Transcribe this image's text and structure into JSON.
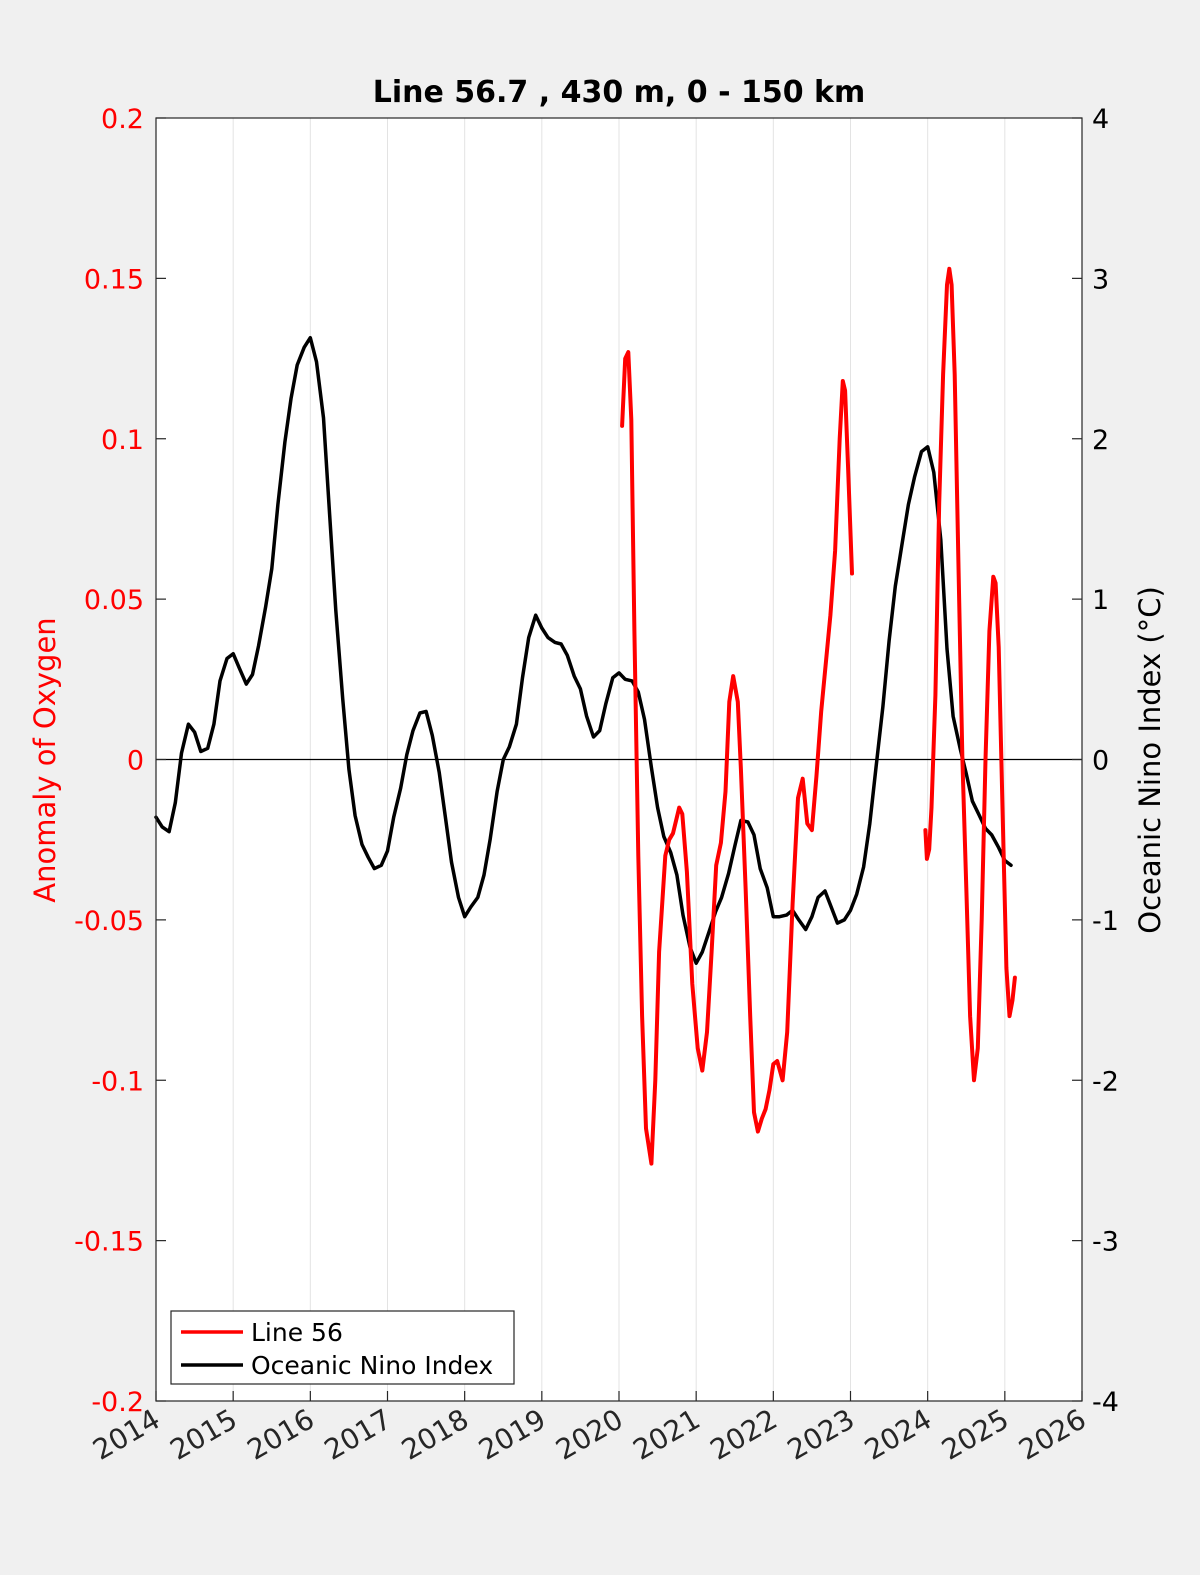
{
  "chart_data": {
    "type": "line",
    "title": "Line 56.7 , 430 m, 0 - 150 km",
    "xlabel": "",
    "ylabel_left": "Anomaly of Oxygen",
    "ylabel_right": "Oceanic Nino Index (°C)",
    "xlim": [
      2014,
      2026
    ],
    "ylim_left": [
      -0.2,
      0.2
    ],
    "ylim_right": [
      -4,
      4
    ],
    "x_ticks": [
      2014,
      2015,
      2016,
      2017,
      2018,
      2019,
      2020,
      2021,
      2022,
      2023,
      2024,
      2025,
      2026
    ],
    "x_tick_labels": [
      "2014",
      "2015",
      "2016",
      "2017",
      "2018",
      "2019",
      "2020",
      "2021",
      "2022",
      "2023",
      "2024",
      "2025",
      "2026"
    ],
    "y_left_ticks": [
      0.2,
      0.15,
      0.1,
      0.05,
      0,
      -0.05,
      -0.1,
      -0.15,
      -0.2
    ],
    "y_left_tick_labels": [
      "0.2",
      "0.15",
      "0.1",
      "0.05",
      "0",
      "-0.05",
      "-0.1",
      "-0.15",
      "-0.2"
    ],
    "y_right_ticks": [
      4,
      3,
      2,
      1,
      0,
      -1,
      -2,
      -3,
      -4
    ],
    "y_right_tick_labels": [
      "4",
      "3",
      "2",
      "1",
      "0",
      "-1",
      "-2",
      "-3",
      "-4"
    ],
    "grid": "vertical",
    "legend_position": "bottom-left",
    "colors": {
      "line56": "#ff0000",
      "oni": "#000000",
      "left_axis": "#ff0000",
      "right_axis": "#000000"
    },
    "series": [
      {
        "name": "Line 56",
        "axis": "left",
        "segments": [
          [
            [
              2020.04,
              0.104
            ],
            [
              2020.08,
              0.125
            ],
            [
              2020.12,
              0.127
            ],
            [
              2020.16,
              0.106
            ],
            [
              2020.2,
              0.04
            ],
            [
              2020.25,
              -0.03
            ],
            [
              2020.3,
              -0.08
            ],
            [
              2020.35,
              -0.115
            ],
            [
              2020.42,
              -0.126
            ],
            [
              2020.47,
              -0.1
            ],
            [
              2020.52,
              -0.06
            ],
            [
              2020.6,
              -0.03
            ],
            [
              2020.65,
              -0.025
            ],
            [
              2020.7,
              -0.023
            ],
            [
              2020.78,
              -0.015
            ],
            [
              2020.82,
              -0.017
            ],
            [
              2020.88,
              -0.035
            ],
            [
              2020.95,
              -0.07
            ],
            [
              2021.02,
              -0.09
            ],
            [
              2021.08,
              -0.097
            ],
            [
              2021.14,
              -0.085
            ],
            [
              2021.2,
              -0.06
            ],
            [
              2021.26,
              -0.033
            ],
            [
              2021.32,
              -0.026
            ],
            [
              2021.38,
              -0.01
            ],
            [
              2021.43,
              0.018
            ],
            [
              2021.48,
              0.026
            ],
            [
              2021.54,
              0.018
            ],
            [
              2021.58,
              -0.003
            ],
            [
              2021.64,
              -0.04
            ],
            [
              2021.7,
              -0.08
            ],
            [
              2021.75,
              -0.11
            ],
            [
              2021.8,
              -0.116
            ],
            [
              2021.85,
              -0.112
            ],
            [
              2021.9,
              -0.109
            ],
            [
              2021.95,
              -0.103
            ],
            [
              2022.0,
              -0.095
            ],
            [
              2022.05,
              -0.094
            ],
            [
              2022.12,
              -0.1
            ],
            [
              2022.18,
              -0.085
            ],
            [
              2022.25,
              -0.045
            ],
            [
              2022.32,
              -0.012
            ],
            [
              2022.38,
              -0.006
            ],
            [
              2022.44,
              -0.02
            ],
            [
              2022.5,
              -0.022
            ],
            [
              2022.56,
              -0.005
            ],
            [
              2022.62,
              0.015
            ],
            [
              2022.68,
              0.03
            ],
            [
              2022.74,
              0.045
            ],
            [
              2022.8,
              0.065
            ],
            [
              2022.86,
              0.1
            ],
            [
              2022.9,
              0.118
            ],
            [
              2022.93,
              0.115
            ],
            [
              2022.97,
              0.09
            ],
            [
              2023.02,
              0.058
            ]
          ],
          [
            [
              2023.97,
              -0.022
            ],
            [
              2023.99,
              -0.031
            ],
            [
              2024.02,
              -0.028
            ],
            [
              2024.05,
              -0.015
            ],
            [
              2024.1,
              0.02
            ],
            [
              2024.15,
              0.08
            ],
            [
              2024.2,
              0.12
            ],
            [
              2024.25,
              0.148
            ],
            [
              2024.28,
              0.153
            ],
            [
              2024.31,
              0.148
            ],
            [
              2024.35,
              0.12
            ],
            [
              2024.4,
              0.06
            ],
            [
              2024.45,
              0.0
            ],
            [
              2024.5,
              -0.04
            ],
            [
              2024.55,
              -0.08
            ],
            [
              2024.6,
              -0.1
            ],
            [
              2024.65,
              -0.09
            ],
            [
              2024.7,
              -0.05
            ],
            [
              2024.75,
              0.0
            ],
            [
              2024.8,
              0.04
            ],
            [
              2024.85,
              0.057
            ],
            [
              2024.88,
              0.055
            ],
            [
              2024.92,
              0.035
            ],
            [
              2024.97,
              -0.015
            ],
            [
              2025.02,
              -0.065
            ],
            [
              2025.06,
              -0.08
            ],
            [
              2025.1,
              -0.075
            ],
            [
              2025.13,
              -0.068
            ]
          ]
        ]
      },
      {
        "name": "Oceanic Nino Index",
        "axis": "right",
        "x": [
          2014.0,
          2014.08,
          2014.17,
          2014.25,
          2014.33,
          2014.42,
          2014.5,
          2014.58,
          2014.67,
          2014.75,
          2014.83,
          2014.92,
          2015.0,
          2015.08,
          2015.17,
          2015.25,
          2015.33,
          2015.42,
          2015.5,
          2015.58,
          2015.67,
          2015.75,
          2015.83,
          2015.92,
          2016.0,
          2016.08,
          2016.17,
          2016.25,
          2016.33,
          2016.42,
          2016.5,
          2016.58,
          2016.67,
          2016.75,
          2016.83,
          2016.92,
          2017.0,
          2017.08,
          2017.17,
          2017.25,
          2017.33,
          2017.42,
          2017.5,
          2017.58,
          2017.67,
          2017.75,
          2017.83,
          2017.92,
          2018.0,
          2018.08,
          2018.17,
          2018.25,
          2018.33,
          2018.42,
          2018.5,
          2018.58,
          2018.67,
          2018.75,
          2018.83,
          2018.92,
          2019.0,
          2019.08,
          2019.17,
          2019.25,
          2019.33,
          2019.42,
          2019.5,
          2019.58,
          2019.67,
          2019.75,
          2019.83,
          2019.92,
          2020.0,
          2020.08,
          2020.17,
          2020.25,
          2020.33,
          2020.42,
          2020.5,
          2020.58,
          2020.67,
          2020.75,
          2020.83,
          2020.92,
          2021.0,
          2021.08,
          2021.17,
          2021.25,
          2021.33,
          2021.42,
          2021.5,
          2021.58,
          2021.67,
          2021.75,
          2021.83,
          2021.92,
          2022.0,
          2022.08,
          2022.17,
          2022.25,
          2022.33,
          2022.42,
          2022.5,
          2022.58,
          2022.67,
          2022.75,
          2022.83,
          2022.92,
          2023.0,
          2023.08,
          2023.17,
          2023.25,
          2023.33,
          2023.42,
          2023.5,
          2023.58,
          2023.67,
          2023.75,
          2023.83,
          2023.92,
          2024.0,
          2024.08,
          2024.17,
          2024.25,
          2024.33,
          2024.42,
          2024.5,
          2024.58,
          2024.67,
          2024.75,
          2024.83,
          2024.92,
          2025.0,
          2025.08
        ],
        "values": [
          -0.36,
          -0.42,
          -0.45,
          -0.27,
          0.04,
          0.22,
          0.17,
          0.05,
          0.07,
          0.22,
          0.49,
          0.63,
          0.66,
          0.57,
          0.47,
          0.53,
          0.71,
          0.95,
          1.19,
          1.59,
          1.98,
          2.25,
          2.46,
          2.57,
          2.63,
          2.48,
          2.13,
          1.53,
          0.93,
          0.38,
          -0.06,
          -0.35,
          -0.53,
          -0.61,
          -0.68,
          -0.66,
          -0.57,
          -0.36,
          -0.18,
          0.03,
          0.18,
          0.29,
          0.3,
          0.15,
          -0.08,
          -0.36,
          -0.64,
          -0.86,
          -0.98,
          -0.92,
          -0.86,
          -0.72,
          -0.5,
          -0.2,
          0.0,
          0.08,
          0.22,
          0.51,
          0.76,
          0.9,
          0.82,
          0.76,
          0.73,
          0.72,
          0.65,
          0.52,
          0.44,
          0.27,
          0.14,
          0.18,
          0.35,
          0.51,
          0.54,
          0.5,
          0.49,
          0.42,
          0.25,
          -0.05,
          -0.3,
          -0.48,
          -0.58,
          -0.72,
          -0.97,
          -1.17,
          -1.27,
          -1.2,
          -1.07,
          -0.95,
          -0.86,
          -0.71,
          -0.54,
          -0.38,
          -0.39,
          -0.47,
          -0.68,
          -0.8,
          -0.98,
          -0.98,
          -0.97,
          -0.94,
          -1.0,
          -1.06,
          -0.98,
          -0.86,
          -0.82,
          -0.92,
          -1.02,
          -1.0,
          -0.94,
          -0.84,
          -0.67,
          -0.4,
          -0.05,
          0.33,
          0.74,
          1.08,
          1.35,
          1.59,
          1.76,
          1.92,
          1.95,
          1.79,
          1.37,
          0.69,
          0.27,
          0.07,
          -0.09,
          -0.26,
          -0.35,
          -0.43,
          -0.47,
          -0.55,
          -0.63,
          -0.66
        ]
      }
    ]
  }
}
